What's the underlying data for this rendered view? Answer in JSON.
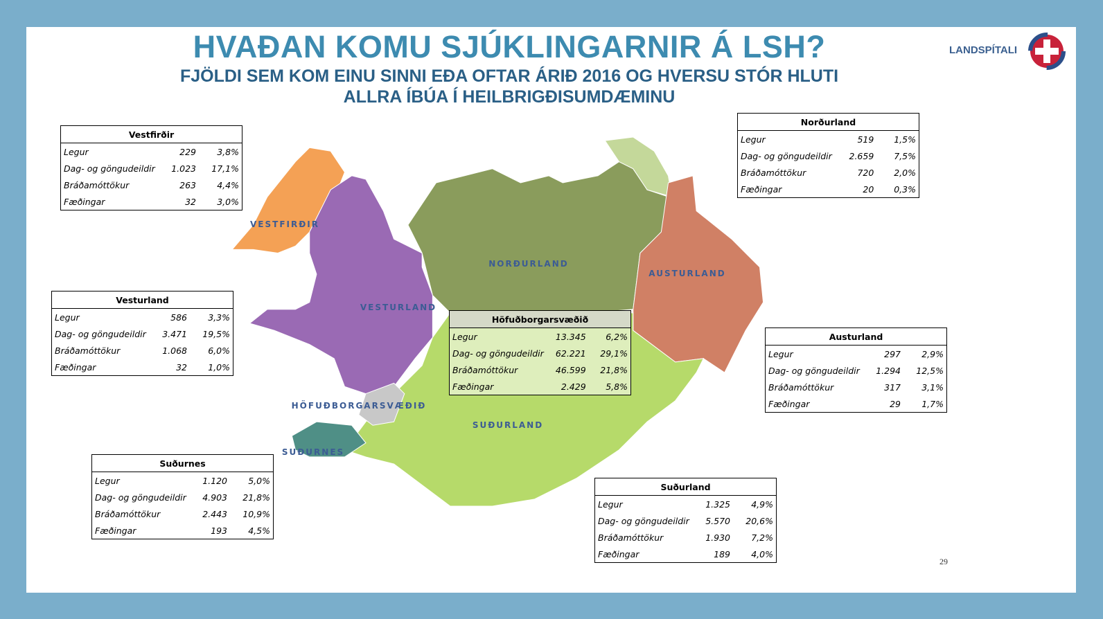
{
  "header": {
    "title": "HVAÐAN KOMU SJÚKLINGARNIR Á LSH?",
    "subtitle_lines": [
      "FJÖLDI SEM KOM EINU SINNI EÐA OFTAR ÁRIÐ 2016 OG HVERSU STÓR HLUTI",
      "ALLRA ÍBÚA Í HEILBRIGÐISUMDÆMINU"
    ]
  },
  "logo": "LANDSPÍTALI",
  "map_labels": [
    "VESTFIRÐIR",
    "VESTURLAND",
    "NORÐURLAND",
    "AUSTURLAND",
    "HÖFUÐBORGARSVÆÐIÐ",
    "SUÐURLAND",
    "SUÐURNES"
  ],
  "tables": [
    {
      "title": "Vestfirðir",
      "rows": [
        [
          "Legur",
          "229",
          "3,8%"
        ],
        [
          "Dag- og göngudeildir",
          "1.023",
          "17,1%"
        ],
        [
          "Bráðamóttökur",
          "263",
          "4,4%"
        ],
        [
          "Fæðingar",
          "32",
          "3,0%"
        ]
      ]
    },
    {
      "title": "Vesturland",
      "rows": [
        [
          "Legur",
          "586",
          "3,3%"
        ],
        [
          "Dag- og göngudeildir",
          "3.471",
          "19,5%"
        ],
        [
          "Bráðamóttökur",
          "1.068",
          "6,0%"
        ],
        [
          "Fæðingar",
          "32",
          "1,0%"
        ]
      ]
    },
    {
      "title": "Höfuðborgarsvæðið",
      "rows": [
        [
          "Legur",
          "13.345",
          "6,2%"
        ],
        [
          "Dag- og göngudeildir",
          "62.221",
          "29,1%"
        ],
        [
          "Bráðamóttökur",
          "46.599",
          "21,8%"
        ],
        [
          "Fæðingar",
          "2.429",
          "5,8%"
        ]
      ]
    },
    {
      "title": "Norðurland",
      "rows": [
        [
          "Legur",
          "519",
          "1,5%"
        ],
        [
          "Dag- og göngudeildir",
          "2.659",
          "7,5%"
        ],
        [
          "Bráðamóttökur",
          "720",
          "2,0%"
        ],
        [
          "Fæðingar",
          "20",
          "0,3%"
        ]
      ]
    },
    {
      "title": "Austurland",
      "rows": [
        [
          "Legur",
          "297",
          "2,9%"
        ],
        [
          "Dag- og göngudeildir",
          "1.294",
          "12,5%"
        ],
        [
          "Bráðamóttökur",
          "317",
          "3,1%"
        ],
        [
          "Fæðingar",
          "29",
          "1,7%"
        ]
      ]
    },
    {
      "title": "Suðurnes",
      "rows": [
        [
          "Legur",
          "1.120",
          "5,0%"
        ],
        [
          "Dag- og göngudeildir",
          "4.903",
          "21,8%"
        ],
        [
          "Bráðamóttökur",
          "2.443",
          "10,9%"
        ],
        [
          "Fæðingar",
          "193",
          "4,5%"
        ]
      ]
    },
    {
      "title": "Suðurland",
      "rows": [
        [
          "Legur",
          "1.325",
          "4,9%"
        ],
        [
          "Dag- og göngudeildir",
          "5.570",
          "20,6%"
        ],
        [
          "Bráðamóttökur",
          "1.930",
          "7,2%"
        ],
        [
          "Fæðingar",
          "189",
          "4,0%"
        ]
      ]
    }
  ],
  "page_number": "29"
}
